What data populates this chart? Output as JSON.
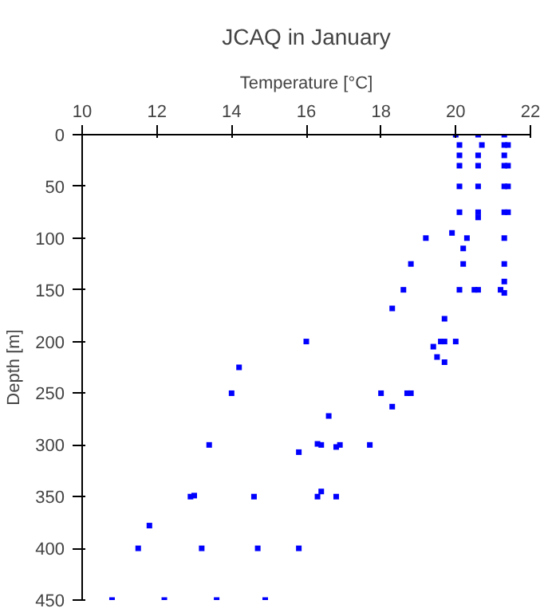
{
  "chart_data": {
    "type": "scatter",
    "title": "JCAQ in January",
    "xlabel": "Temperature [°C]",
    "ylabel": "Depth [m]",
    "xlim": [
      10,
      22
    ],
    "xticks": [
      10,
      12,
      14,
      16,
      18,
      20,
      22
    ],
    "ylim": [
      450,
      0
    ],
    "yticks": [
      0,
      50,
      100,
      150,
      200,
      250,
      300,
      350,
      400,
      450
    ],
    "grid": false,
    "marker": "square",
    "series": [
      {
        "color": "#0000ff",
        "x": [
          20.0,
          20.6,
          21.3,
          20.1,
          20.7,
          21.3,
          21.4,
          20.1,
          20.6,
          21.3,
          20.1,
          20.6,
          21.3,
          21.4,
          20.1,
          20.6,
          21.3,
          21.4,
          20.1,
          20.6,
          20.6,
          21.3,
          21.4,
          19.9,
          19.2,
          20.3,
          21.3,
          20.2,
          18.8,
          20.2,
          21.3,
          21.3,
          18.6,
          20.1,
          20.5,
          20.6,
          21.2,
          21.3,
          18.3,
          19.7,
          16.0,
          20.0,
          19.6,
          19.7,
          19.4,
          19.5,
          19.7,
          14.2,
          14.0,
          18.0,
          18.7,
          18.8,
          18.3,
          16.6,
          13.4,
          16.3,
          16.4,
          16.8,
          16.9,
          17.7,
          15.8,
          12.9,
          13.0,
          14.6,
          16.3,
          16.4,
          16.8,
          11.8,
          11.5,
          13.2,
          14.7,
          15.8,
          10.8,
          12.2,
          13.6,
          14.9
        ],
        "values": [
          0,
          0,
          0,
          10,
          10,
          10,
          10,
          20,
          20,
          20,
          30,
          30,
          30,
          30,
          50,
          50,
          50,
          50,
          75,
          75,
          80,
          75,
          75,
          95,
          100,
          100,
          100,
          110,
          125,
          125,
          125,
          142,
          150,
          150,
          150,
          150,
          150,
          153,
          168,
          178,
          200,
          200,
          200,
          200,
          205,
          215,
          220,
          225,
          250,
          250,
          250,
          250,
          263,
          272,
          300,
          299,
          300,
          302,
          300,
          300,
          307,
          350,
          349,
          350,
          350,
          345,
          350,
          378,
          400,
          400,
          400,
          400,
          450,
          450,
          450,
          450
        ]
      }
    ]
  }
}
